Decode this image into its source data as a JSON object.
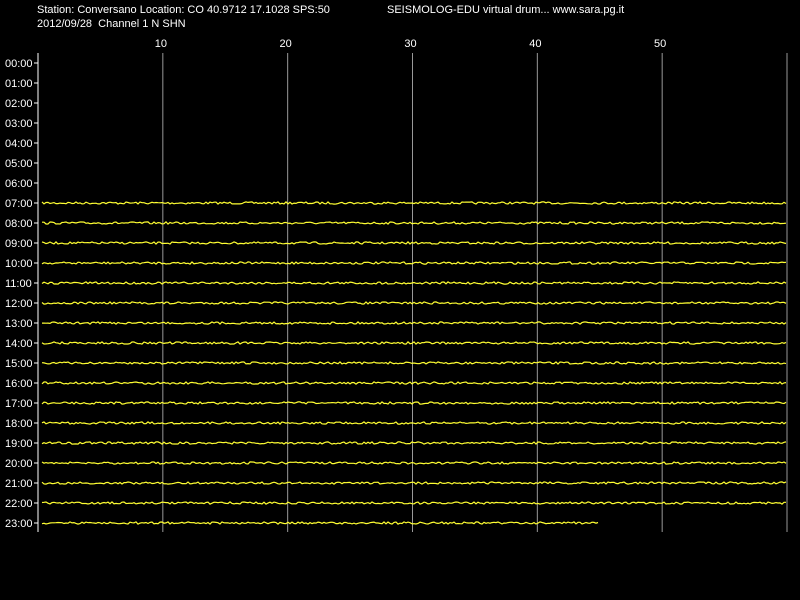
{
  "chart_data": {
    "type": "drum",
    "header": [
      "Station: Conversano Location: CO 40.9712 17.1028 SPS:50",
      "SEISMOLOG-EDU virtual drum... www.sara.pg.it",
      "2012/09/28  Channel 1 N SHN"
    ],
    "categories": [
      "00:00",
      "01:00",
      "02:00",
      "03:00",
      "04:00",
      "05:00",
      "06:00",
      "07:00",
      "08:00",
      "09:00",
      "10:00",
      "11:00",
      "12:00",
      "13:00",
      "14:00",
      "15:00",
      "16:00",
      "17:00",
      "18:00",
      "19:00",
      "20:00",
      "21:00",
      "22:00",
      "23:00"
    ],
    "values": [
      null,
      null,
      null,
      null,
      null,
      null,
      null,
      60,
      60,
      60,
      60,
      60,
      60,
      60,
      60,
      60,
      60,
      60,
      60,
      60,
      60,
      60,
      60,
      45
    ],
    "color": "#ffff33",
    "xlim": [
      0,
      60
    ],
    "xticks": [
      10,
      20,
      30,
      40,
      50
    ],
    "grid": true
  }
}
